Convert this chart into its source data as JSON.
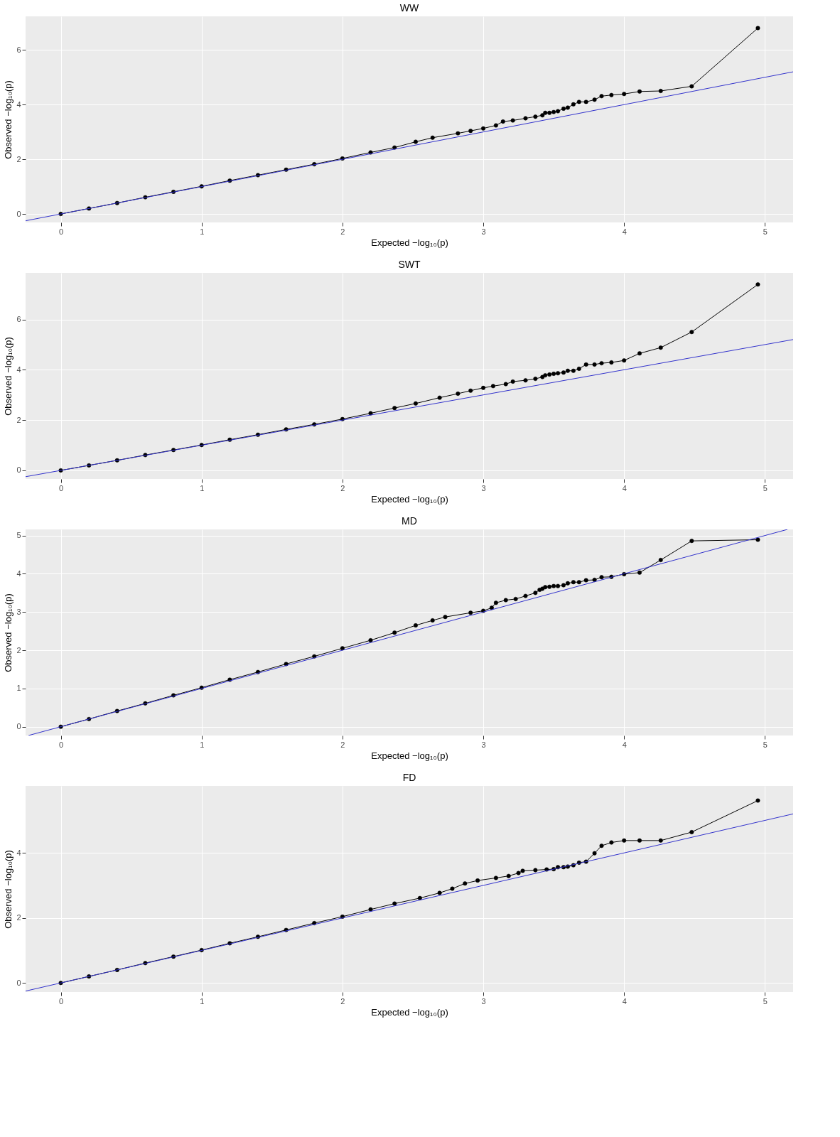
{
  "chart_data": [
    {
      "type": "line",
      "title": "WW",
      "xlabel": "Expected  −log₁₀(p)",
      "ylabel": "Observed  −log₁₀(p)",
      "xlim": [
        -0.25,
        5.2
      ],
      "ylim": [
        -0.31,
        7.23
      ],
      "xticks": [
        0,
        1,
        2,
        3,
        4,
        5
      ],
      "yticks": [
        0,
        2,
        4,
        6
      ],
      "grid": true,
      "series": [
        {
          "color": "#000000",
          "marker": "circle",
          "x": [
            0,
            0.2,
            0.4,
            0.6,
            0.8,
            1.0,
            1.2,
            1.4,
            1.6,
            1.8,
            2.0,
            2.2,
            2.37,
            2.52,
            2.64,
            2.82,
            2.91,
            3.0,
            3.09,
            3.14,
            3.21,
            3.3,
            3.37,
            3.42,
            3.44,
            3.47,
            3.5,
            3.53,
            3.57,
            3.6,
            3.64,
            3.68,
            3.73,
            3.79,
            3.84,
            3.91,
            4.0,
            4.11,
            4.26,
            4.48,
            4.95
          ],
          "values": [
            0,
            0.2,
            0.4,
            0.61,
            0.81,
            1.01,
            1.22,
            1.42,
            1.62,
            1.82,
            2.03,
            2.25,
            2.43,
            2.64,
            2.79,
            2.95,
            3.04,
            3.13,
            3.24,
            3.38,
            3.42,
            3.5,
            3.56,
            3.61,
            3.7,
            3.7,
            3.73,
            3.76,
            3.85,
            3.89,
            4.01,
            4.1,
            4.1,
            4.18,
            4.31,
            4.35,
            4.39,
            4.48,
            4.5,
            4.67,
            6.8
          ]
        },
        {
          "color": "#3333cc",
          "marker": "none",
          "x": [
            -0.25,
            5.2
          ],
          "values": [
            -0.25,
            5.2
          ]
        }
      ]
    },
    {
      "type": "line",
      "title": "SWT",
      "xlabel": "Expected  −log₁₀(p)",
      "ylabel": "Observed  −log₁₀(p)",
      "xlim": [
        -0.25,
        5.2
      ],
      "ylim": [
        -0.34,
        7.85
      ],
      "xticks": [
        0,
        1,
        2,
        3,
        4,
        5
      ],
      "yticks": [
        0,
        2,
        4,
        6
      ],
      "grid": true,
      "series": [
        {
          "color": "#000000",
          "marker": "circle",
          "x": [
            0,
            0.2,
            0.4,
            0.6,
            0.8,
            1.0,
            1.2,
            1.4,
            1.6,
            1.8,
            2.0,
            2.2,
            2.37,
            2.52,
            2.69,
            2.82,
            2.91,
            3.0,
            3.07,
            3.16,
            3.21,
            3.3,
            3.37,
            3.42,
            3.44,
            3.47,
            3.5,
            3.53,
            3.57,
            3.6,
            3.64,
            3.68,
            3.73,
            3.79,
            3.84,
            3.91,
            4.0,
            4.11,
            4.26,
            4.48,
            4.95
          ],
          "values": [
            0,
            0.2,
            0.4,
            0.61,
            0.81,
            1.01,
            1.22,
            1.42,
            1.63,
            1.83,
            2.04,
            2.27,
            2.48,
            2.66,
            2.89,
            3.05,
            3.17,
            3.28,
            3.35,
            3.43,
            3.53,
            3.58,
            3.64,
            3.71,
            3.78,
            3.81,
            3.84,
            3.86,
            3.89,
            3.96,
            3.96,
            4.04,
            4.21,
            4.21,
            4.26,
            4.29,
            4.37,
            4.65,
            4.88,
            5.5,
            7.39
          ]
        },
        {
          "color": "#3333cc",
          "marker": "none",
          "x": [
            -0.25,
            5.2
          ],
          "values": [
            -0.25,
            5.2
          ]
        }
      ]
    },
    {
      "type": "line",
      "title": "MD",
      "xlabel": "Expected  −log₁₀(p)",
      "ylabel": "Observed  −log₁₀(p)",
      "xlim": [
        -0.25,
        5.2
      ],
      "ylim": [
        -0.23,
        5.16
      ],
      "xticks": [
        0,
        1,
        2,
        3,
        4,
        5
      ],
      "yticks": [
        0,
        1,
        2,
        3,
        4,
        5
      ],
      "grid": true,
      "series": [
        {
          "color": "#000000",
          "marker": "circle",
          "x": [
            0,
            0.2,
            0.4,
            0.6,
            0.8,
            1.0,
            1.2,
            1.4,
            1.6,
            1.8,
            2.0,
            2.2,
            2.37,
            2.52,
            2.64,
            2.73,
            2.91,
            3.0,
            3.06,
            3.09,
            3.16,
            3.23,
            3.3,
            3.37,
            3.4,
            3.42,
            3.44,
            3.47,
            3.5,
            3.53,
            3.57,
            3.6,
            3.64,
            3.68,
            3.73,
            3.79,
            3.84,
            3.91,
            4.0,
            4.11,
            4.26,
            4.48,
            4.95
          ],
          "values": [
            0,
            0.2,
            0.41,
            0.61,
            0.82,
            1.02,
            1.23,
            1.43,
            1.64,
            1.84,
            2.05,
            2.26,
            2.46,
            2.65,
            2.78,
            2.87,
            2.98,
            3.03,
            3.11,
            3.24,
            3.31,
            3.34,
            3.42,
            3.5,
            3.58,
            3.61,
            3.65,
            3.66,
            3.68,
            3.68,
            3.7,
            3.75,
            3.78,
            3.78,
            3.83,
            3.84,
            3.91,
            3.92,
            3.99,
            4.03,
            4.36,
            4.86,
            4.89
          ]
        },
        {
          "color": "#3333cc",
          "marker": "none",
          "x": [
            -0.23,
            5.16
          ],
          "values": [
            -0.23,
            5.16
          ]
        }
      ]
    },
    {
      "type": "line",
      "title": "FD",
      "xlabel": "Expected  −log₁₀(p)",
      "ylabel": "Observed  −log₁₀(p)",
      "xlim": [
        -0.25,
        5.2
      ],
      "ylim": [
        -0.28,
        6.06
      ],
      "xticks": [
        0,
        1,
        2,
        3,
        4,
        5
      ],
      "yticks": [
        0,
        2,
        4
      ],
      "grid": true,
      "series": [
        {
          "color": "#000000",
          "marker": "circle",
          "x": [
            0,
            0.2,
            0.4,
            0.6,
            0.8,
            1.0,
            1.2,
            1.4,
            1.6,
            1.8,
            2.0,
            2.2,
            2.37,
            2.55,
            2.69,
            2.78,
            2.87,
            2.96,
            3.09,
            3.18,
            3.25,
            3.28,
            3.37,
            3.45,
            3.5,
            3.53,
            3.57,
            3.6,
            3.64,
            3.68,
            3.73,
            3.79,
            3.84,
            3.91,
            4.0,
            4.11,
            4.26,
            4.48,
            4.95
          ],
          "values": [
            0,
            0.2,
            0.4,
            0.61,
            0.81,
            1.01,
            1.22,
            1.42,
            1.63,
            1.84,
            2.04,
            2.26,
            2.44,
            2.61,
            2.77,
            2.9,
            3.06,
            3.15,
            3.23,
            3.29,
            3.38,
            3.45,
            3.47,
            3.49,
            3.5,
            3.56,
            3.56,
            3.58,
            3.62,
            3.7,
            3.73,
            3.99,
            4.22,
            4.32,
            4.38,
            4.38,
            4.38,
            4.64,
            5.61
          ]
        },
        {
          "color": "#3333cc",
          "marker": "none",
          "x": [
            -0.25,
            5.2
          ],
          "values": [
            -0.25,
            5.2
          ]
        }
      ]
    }
  ]
}
